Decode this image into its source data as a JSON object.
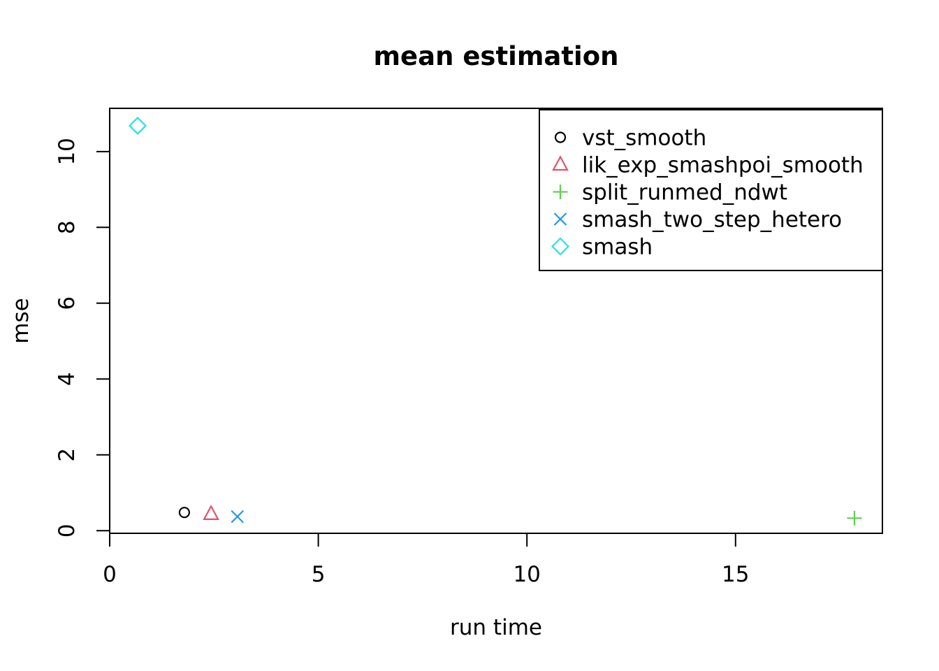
{
  "window": {
    "background": "#ffffff"
  },
  "chart_data": {
    "type": "scatter",
    "title": "mean estimation",
    "xlabel": "run time",
    "ylabel": "mse",
    "xlim": [
      0,
      18.52
    ],
    "ylim": [
      -0.07,
      11.14
    ],
    "xticks": [
      0,
      5,
      10,
      15
    ],
    "yticks": [
      0,
      2,
      4,
      6,
      8,
      10
    ],
    "grid": false,
    "axis_color": "#000000",
    "legend_position": "top-right",
    "series": [
      {
        "name": "vst_smooth",
        "marker": "circle",
        "color": "#000000",
        "points": [
          {
            "x": 1.79,
            "y": 0.48
          }
        ]
      },
      {
        "name": "lik_exp_smashpoi_smooth",
        "marker": "triangle",
        "color": "#DF536B",
        "points": [
          {
            "x": 2.43,
            "y": 0.44
          }
        ]
      },
      {
        "name": "split_runmed_ndwt",
        "marker": "plus",
        "color": "#61D04F",
        "points": [
          {
            "x": 17.85,
            "y": 0.33
          }
        ]
      },
      {
        "name": "smash_two_step_hetero",
        "marker": "x",
        "color": "#2297E6",
        "points": [
          {
            "x": 3.06,
            "y": 0.37
          }
        ]
      },
      {
        "name": "smash",
        "marker": "diamond",
        "color": "#28E2E5",
        "points": [
          {
            "x": 0.67,
            "y": 10.68
          }
        ]
      }
    ]
  }
}
